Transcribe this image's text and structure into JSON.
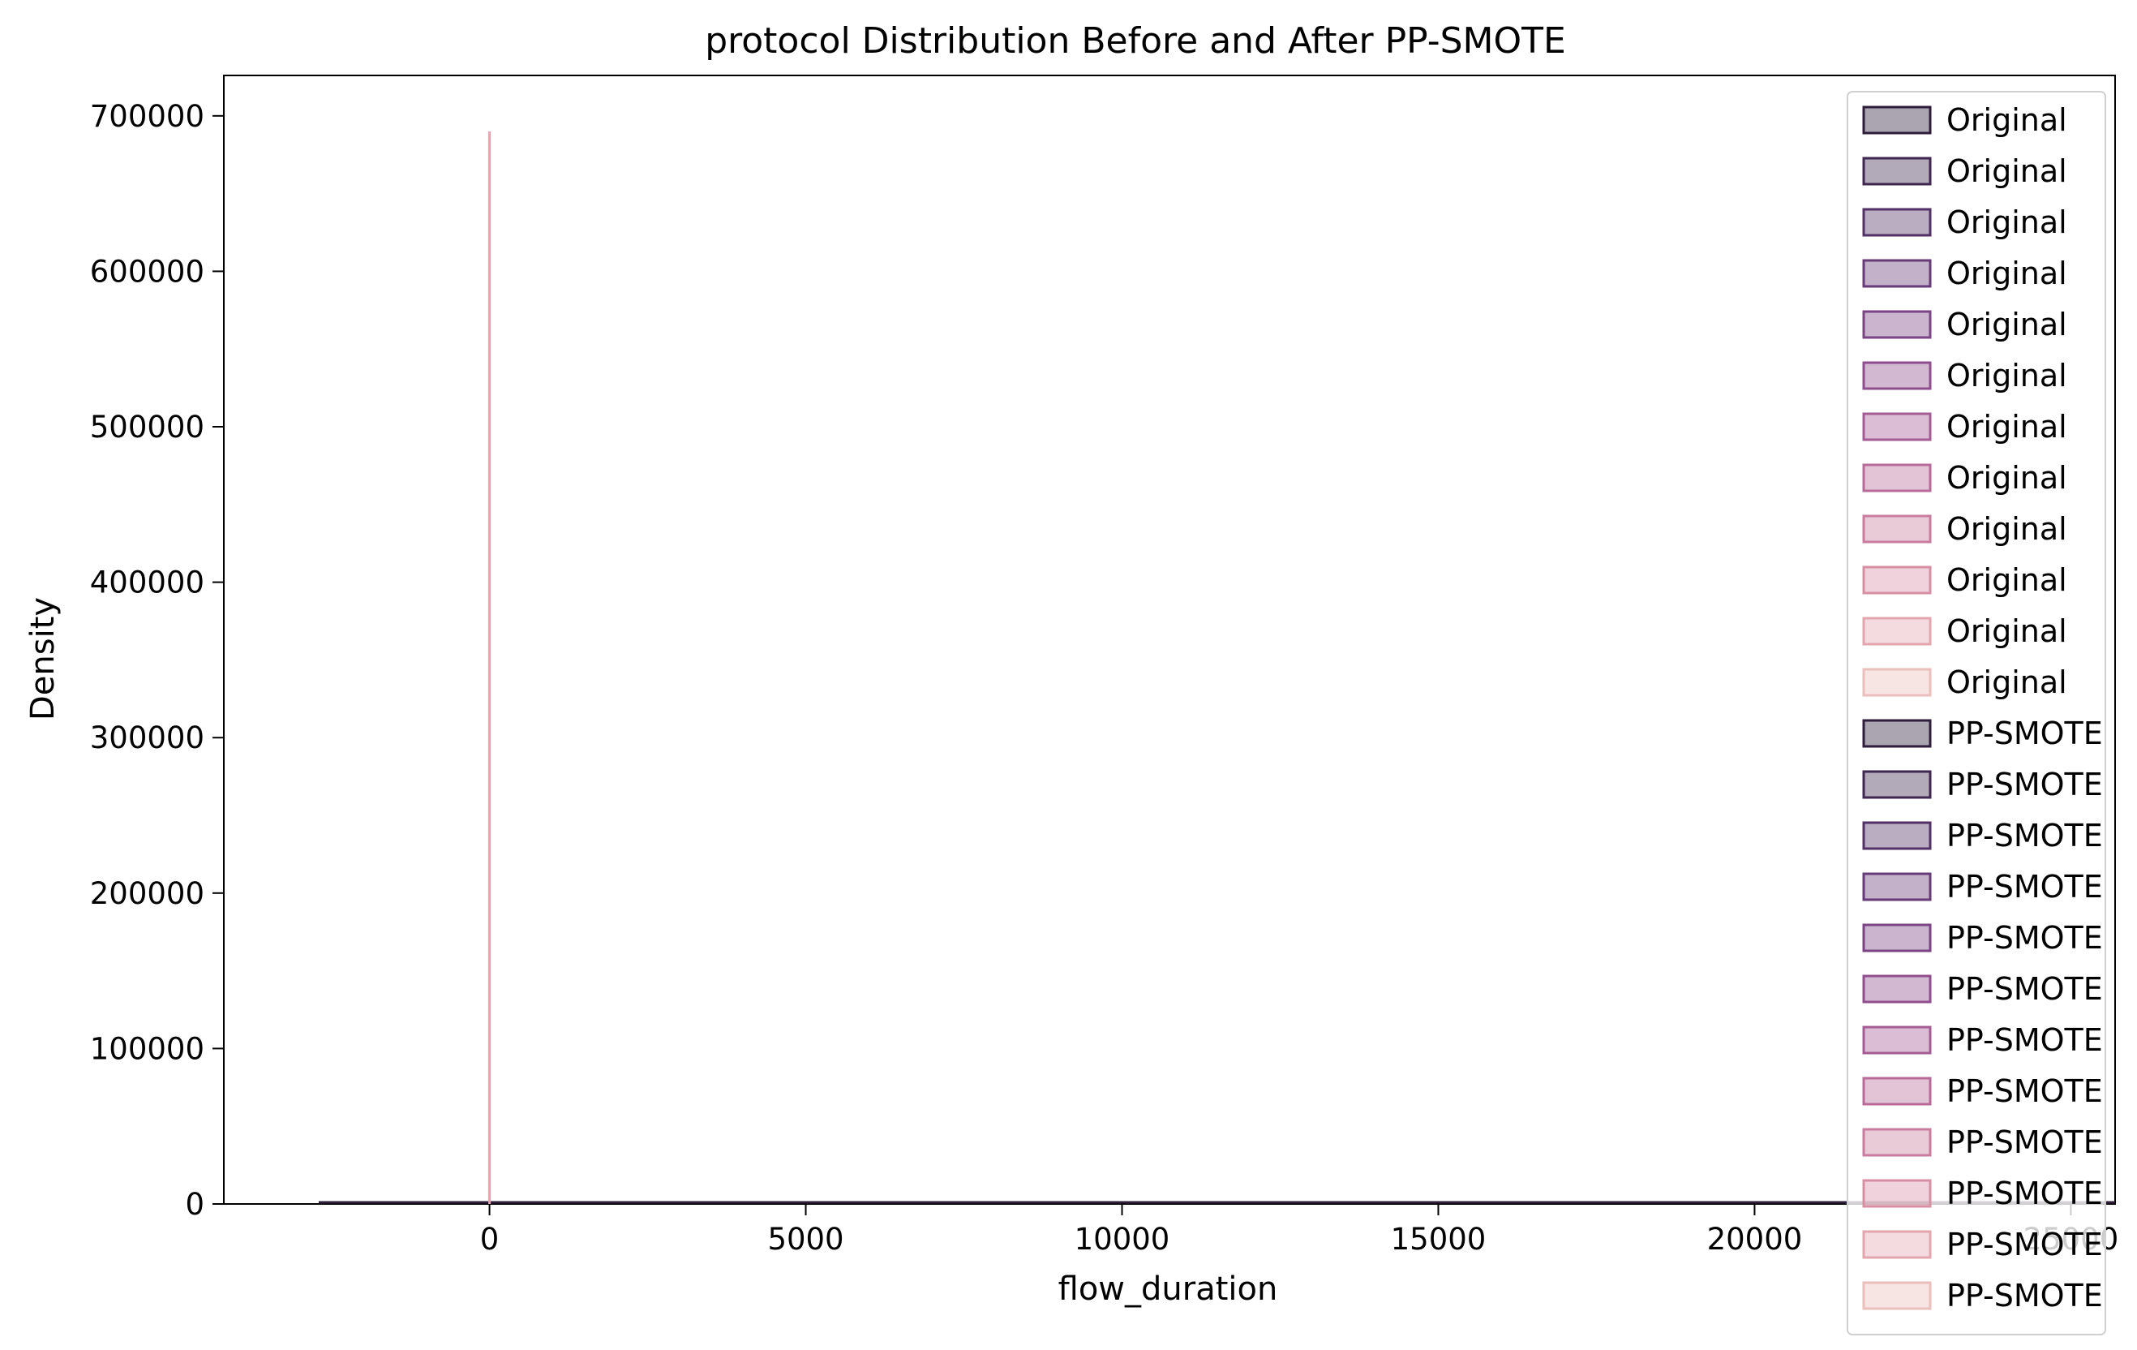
{
  "chart_data": {
    "type": "area",
    "title": "protocol Distribution Before and After PP-SMOTE",
    "xlabel": "flow_duration",
    "ylabel": "Density",
    "xlim": [
      -4200,
      25700
    ],
    "ylim": [
      0,
      726000
    ],
    "x_ticks": [
      0,
      5000,
      10000,
      15000,
      20000,
      25000
    ],
    "x_tick_labels": [
      "0",
      "5000",
      "10000",
      "15000",
      "20000",
      "25000"
    ],
    "y_ticks": [
      0,
      100000,
      200000,
      300000,
      400000,
      500000,
      600000,
      700000
    ],
    "y_tick_labels": [
      "0",
      "100000",
      "200000",
      "300000",
      "400000",
      "500000",
      "600000",
      "700000"
    ],
    "grid": false,
    "legend_position": "upper right",
    "series": [
      {
        "name": "Original",
        "group": "Original",
        "color": "#2e1e3b"
      },
      {
        "name": "Original",
        "group": "Original",
        "color": "#3f2751"
      },
      {
        "name": "Original",
        "group": "Original",
        "color": "#523166"
      },
      {
        "name": "Original",
        "group": "Original",
        "color": "#663b78"
      },
      {
        "name": "Original",
        "group": "Original",
        "color": "#7b4485"
      },
      {
        "name": "Original",
        "group": "Original",
        "color": "#904e8f"
      },
      {
        "name": "Original",
        "group": "Original",
        "color": "#a55c95"
      },
      {
        "name": "Original",
        "group": "Original",
        "color": "#b86b99"
      },
      {
        "name": "Original",
        "group": "Original",
        "color": "#c97c9e"
      },
      {
        "name": "Original",
        "group": "Original",
        "color": "#d78fa4"
      },
      {
        "name": "Original",
        "group": "Original",
        "color": "#e3a6ae"
      },
      {
        "name": "Original",
        "group": "Original",
        "color": "#ebbfbc"
      },
      {
        "name": "PP-SMOTE",
        "group": "PP-SMOTE",
        "color": "#2e1e3b"
      },
      {
        "name": "PP-SMOTE",
        "group": "PP-SMOTE",
        "color": "#3f2751"
      },
      {
        "name": "PP-SMOTE",
        "group": "PP-SMOTE",
        "color": "#523166"
      },
      {
        "name": "PP-SMOTE",
        "group": "PP-SMOTE",
        "color": "#663b78"
      },
      {
        "name": "PP-SMOTE",
        "group": "PP-SMOTE",
        "color": "#7b4485"
      },
      {
        "name": "PP-SMOTE",
        "group": "PP-SMOTE",
        "color": "#904e8f"
      },
      {
        "name": "PP-SMOTE",
        "group": "PP-SMOTE",
        "color": "#a55c95"
      },
      {
        "name": "PP-SMOTE",
        "group": "PP-SMOTE",
        "color": "#b86b99"
      },
      {
        "name": "PP-SMOTE",
        "group": "PP-SMOTE",
        "color": "#c97c9e"
      },
      {
        "name": "PP-SMOTE",
        "group": "PP-SMOTE",
        "color": "#d78fa4"
      },
      {
        "name": "PP-SMOTE",
        "group": "PP-SMOTE",
        "color": "#e3a6ae"
      },
      {
        "name": "PP-SMOTE",
        "group": "PP-SMOTE",
        "color": "#ebbfbc"
      }
    ],
    "density_spike": {
      "x": 0,
      "y": 690000,
      "color": "#e3a6ae"
    },
    "baseline": {
      "x_start": -2700,
      "x_end": 25700,
      "y": 0
    }
  }
}
